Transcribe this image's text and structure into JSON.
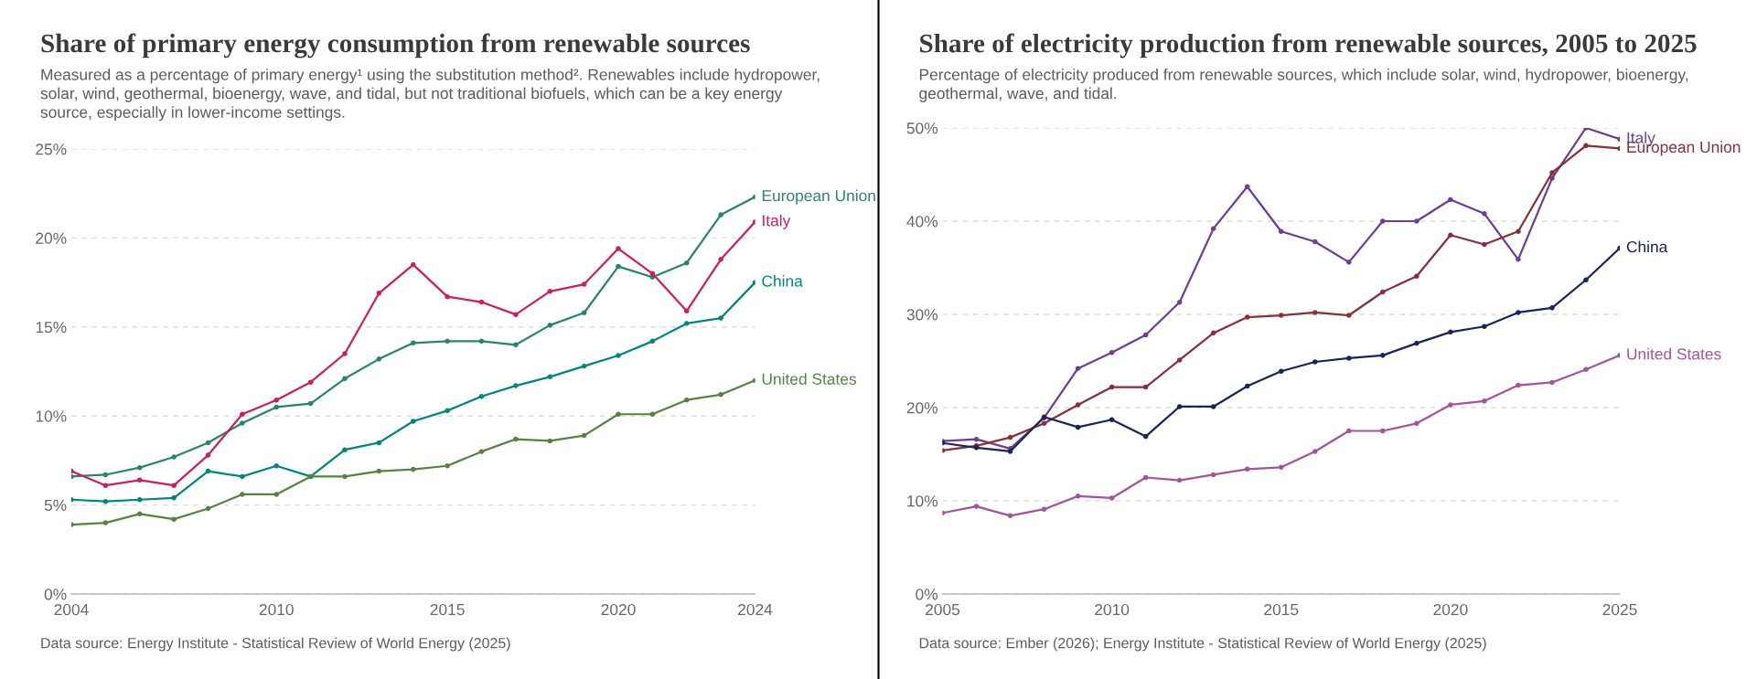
{
  "chart_data": [
    {
      "type": "line",
      "title": "Share of primary energy consumption from renewable sources",
      "subtitle": "Measured as a percentage of primary energy¹ using the substitution method². Renewables include hydropower, solar, wind, geothermal, bioenergy, wave, and tidal, but not traditional biofuels, which can be a key energy source, especially in lower-income settings.",
      "annotations": [
        "Data source: Energy Institute - Statistical Review of World Energy (2025)"
      ],
      "x": [
        2004,
        2005,
        2006,
        2007,
        2008,
        2009,
        2010,
        2011,
        2012,
        2013,
        2014,
        2015,
        2016,
        2017,
        2018,
        2019,
        2020,
        2021,
        2022,
        2023,
        2024
      ],
      "series": [
        {
          "name": "European Union",
          "color": "#2c8465",
          "values": [
            6.6,
            6.7,
            7.1,
            7.7,
            8.5,
            9.6,
            10.5,
            10.7,
            12.1,
            13.2,
            14.1,
            14.2,
            14.2,
            14.0,
            15.1,
            15.8,
            18.4,
            17.8,
            18.6,
            21.3,
            22.3
          ]
        },
        {
          "name": "Italy",
          "color": "#c91f63",
          "values": [
            6.9,
            6.1,
            6.4,
            6.1,
            7.8,
            10.1,
            10.9,
            11.9,
            13.5,
            16.9,
            18.5,
            16.7,
            16.4,
            15.7,
            17.0,
            17.4,
            19.4,
            18.0,
            15.9,
            18.8,
            20.9
          ]
        },
        {
          "name": "China",
          "color": "#00847e",
          "values": [
            5.3,
            5.2,
            5.3,
            5.4,
            6.9,
            6.6,
            7.2,
            6.6,
            8.1,
            8.5,
            9.7,
            10.3,
            11.1,
            11.7,
            12.2,
            12.8,
            13.4,
            14.2,
            15.2,
            15.5,
            17.5
          ]
        },
        {
          "name": "United States",
          "color": "#578145",
          "values": [
            3.9,
            4.0,
            4.5,
            4.2,
            4.8,
            5.6,
            5.6,
            6.6,
            6.6,
            6.9,
            7.0,
            7.2,
            8.0,
            8.7,
            8.6,
            8.9,
            10.1,
            10.1,
            10.9,
            11.2,
            12.0
          ]
        }
      ],
      "xlim": [
        2004,
        2024
      ],
      "xticks": [
        2004,
        2010,
        2015,
        2020,
        2024
      ],
      "ylim": [
        0,
        25
      ],
      "yticks": [
        {
          "value": 0,
          "label": "0%"
        },
        {
          "value": 5,
          "label": "5%"
        },
        {
          "value": 10,
          "label": "10%"
        },
        {
          "value": 15,
          "label": "15%"
        },
        {
          "value": 20,
          "label": "20%"
        },
        {
          "value": 25,
          "label": "25%"
        }
      ],
      "grid": "y",
      "marker": "circle",
      "line_style": "solid"
    },
    {
      "type": "line",
      "title": "Share of electricity production from renewable sources, 2005 to 2025",
      "subtitle": "Percentage of electricity produced from renewable sources, which include solar, wind, hydropower, bioenergy, geothermal, wave, and tidal.",
      "annotations": [
        "Data source: Ember (2026); Energy Institute - Statistical Review of World Energy (2025)"
      ],
      "x": [
        2005,
        2006,
        2007,
        2008,
        2009,
        2010,
        2011,
        2012,
        2013,
        2014,
        2015,
        2016,
        2017,
        2018,
        2019,
        2020,
        2021,
        2022,
        2023,
        2024,
        2025
      ],
      "series": [
        {
          "name": "Italy",
          "color": "#6d3e91",
          "values": [
            16.4,
            16.6,
            15.6,
            18.9,
            24.2,
            25.9,
            27.8,
            31.3,
            39.2,
            43.7,
            38.9,
            37.8,
            35.6,
            40.0,
            40.0,
            42.3,
            40.8,
            35.9,
            44.6,
            50.0,
            48.8
          ]
        },
        {
          "name": "European Union",
          "color": "#883039",
          "values": [
            15.4,
            15.9,
            16.8,
            18.3,
            20.3,
            22.2,
            22.2,
            25.1,
            28.0,
            29.7,
            29.9,
            30.2,
            29.9,
            32.4,
            34.1,
            38.5,
            37.5,
            38.9,
            45.2,
            48.1,
            47.8
          ]
        },
        {
          "name": "China",
          "color": "#18255a",
          "values": [
            16.2,
            15.7,
            15.3,
            19.0,
            17.9,
            18.7,
            16.9,
            20.1,
            20.1,
            22.3,
            23.9,
            24.9,
            25.3,
            25.6,
            26.9,
            28.1,
            28.7,
            30.2,
            30.7,
            33.7,
            37.1
          ]
        },
        {
          "name": "United States",
          "color": "#a2559c",
          "values": [
            8.7,
            9.4,
            8.4,
            9.1,
            10.5,
            10.3,
            12.5,
            12.2,
            12.8,
            13.4,
            13.6,
            15.3,
            17.5,
            17.5,
            18.3,
            20.3,
            20.7,
            22.4,
            22.7,
            24.1,
            25.6
          ]
        }
      ],
      "xlim": [
        2005,
        2025
      ],
      "xticks": [
        2005,
        2010,
        2015,
        2020,
        2025
      ],
      "ylim": [
        0,
        50
      ],
      "yticks": [
        {
          "value": 0,
          "label": "0%"
        },
        {
          "value": 10,
          "label": "10%"
        },
        {
          "value": 20,
          "label": "20%"
        },
        {
          "value": 30,
          "label": "30%"
        },
        {
          "value": 40,
          "label": "40%"
        },
        {
          "value": 50,
          "label": "50%"
        }
      ],
      "grid": "y",
      "marker": "circle",
      "line_style": "solid"
    }
  ]
}
